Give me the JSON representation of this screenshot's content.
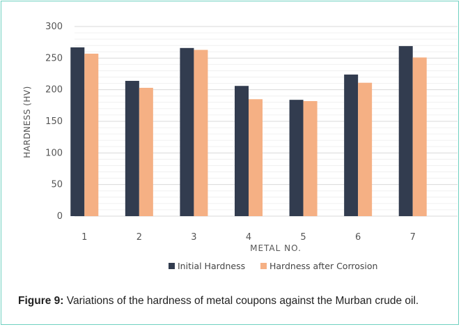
{
  "chart_data": {
    "type": "bar",
    "title": "",
    "xlabel": "METAL NO.",
    "ylabel": "HARDNESS (HV)",
    "categories": [
      "1",
      "2",
      "3",
      "4",
      "5",
      "6",
      "7"
    ],
    "ylim": [
      0,
      300
    ],
    "yticks": [
      0,
      50,
      100,
      150,
      200,
      250,
      300
    ],
    "grid": true,
    "legend": "bottom",
    "series": [
      {
        "name": "Initial Hardness",
        "color": "#323c4f",
        "values": [
          267,
          214,
          266,
          206,
          184,
          224,
          269
        ]
      },
      {
        "name": "Hardness after Corrosion",
        "color": "#f5b084",
        "values": [
          257,
          203,
          263,
          185,
          182,
          211,
          251
        ]
      }
    ]
  },
  "caption": {
    "label": "Figure 9:",
    "text": " Variations of the hardness of metal coupons against the Murban crude oil."
  }
}
